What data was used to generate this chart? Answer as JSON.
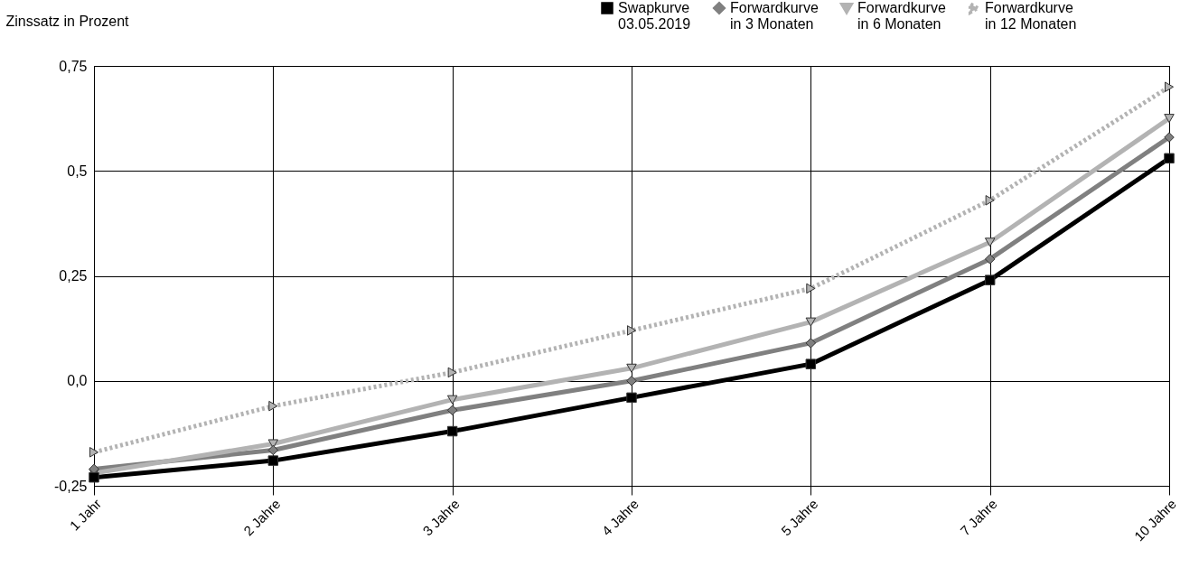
{
  "chart_data": {
    "type": "line",
    "ylabel": "Zinssatz in Prozent",
    "categories": [
      "1 Jahr",
      "2 Jahre",
      "3 Jahre",
      "4 Jahre",
      "5 Jahre",
      "7 Jahre",
      "10 Jahre"
    ],
    "series": [
      {
        "name": "Swapkurve\n03.05.2019",
        "color": "#000000",
        "marker": "square",
        "line_style": "solid",
        "values": [
          -0.23,
          -0.19,
          -0.12,
          -0.04,
          0.04,
          0.24,
          0.53
        ]
      },
      {
        "name": "Forwardkurve\nin 3 Monaten",
        "color": "#808080",
        "marker": "diamond",
        "line_style": "solid",
        "values": [
          -0.21,
          -0.165,
          -0.07,
          0.0,
          0.09,
          0.29,
          0.58
        ]
      },
      {
        "name": "Forwardkurve\nin 6 Monaten",
        "color": "#b3b3b3",
        "marker": "triangle-down",
        "line_style": "solid",
        "values": [
          -0.22,
          -0.15,
          -0.045,
          0.03,
          0.14,
          0.33,
          0.625
        ]
      },
      {
        "name": "Forwardkurve\nin 12 Monaten",
        "color": "#b3b3b3",
        "marker": "triangle-right",
        "line_style": "dotted",
        "values": [
          -0.17,
          -0.06,
          0.02,
          0.12,
          0.22,
          0.43,
          0.7
        ]
      }
    ],
    "ylim": [
      -0.25,
      0.75
    ],
    "yticks": [
      {
        "value": -0.25,
        "label": "-0,25"
      },
      {
        "value": 0,
        "label": "0,0"
      },
      {
        "value": 0.25,
        "label": "0,25"
      },
      {
        "value": 0.5,
        "label": "0,5"
      },
      {
        "value": 0.75,
        "label": "0,75"
      }
    ],
    "grid": true,
    "legend": "top right"
  }
}
